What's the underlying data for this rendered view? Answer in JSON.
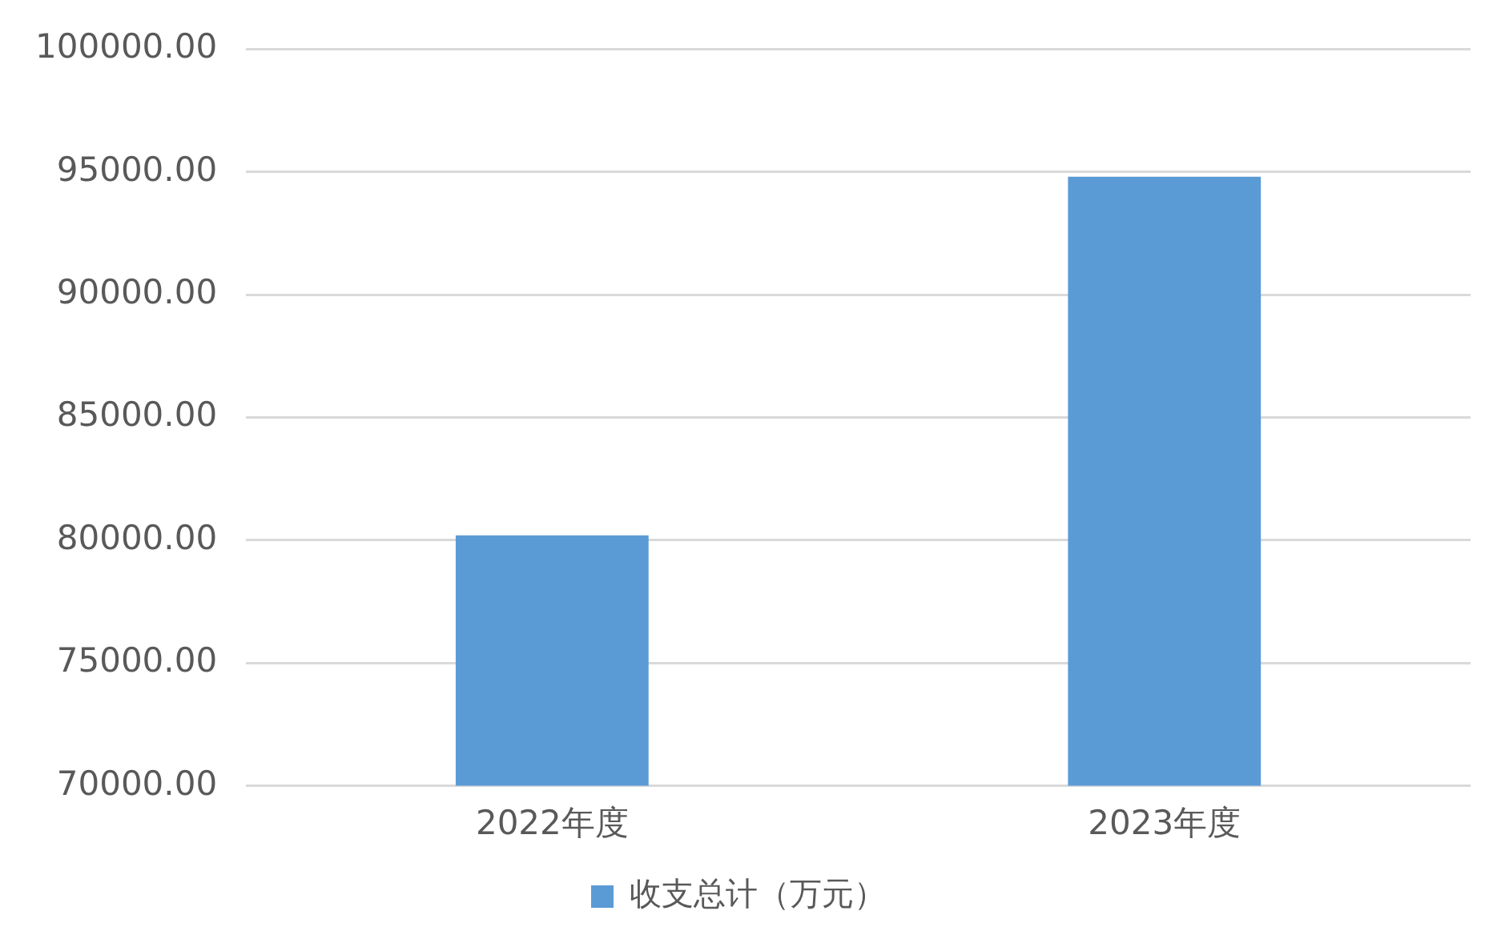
{
  "chart_data": {
    "type": "bar",
    "categories": [
      "2022年度",
      "2023年度"
    ],
    "series": [
      {
        "name": "收支总计（万元）",
        "color": "#5b9bd5",
        "values": [
          80200,
          94800
        ]
      }
    ],
    "ylim": [
      70000,
      100000
    ],
    "yticks": [
      {
        "value": 70000,
        "label": "70000.00"
      },
      {
        "value": 75000,
        "label": "75000.00"
      },
      {
        "value": 80000,
        "label": "80000.00"
      },
      {
        "value": 85000,
        "label": "85000.00"
      },
      {
        "value": 90000,
        "label": "90000.00"
      },
      {
        "value": 95000,
        "label": "95000.00"
      },
      {
        "value": 100000,
        "label": "100000.00"
      }
    ],
    "grid": "y",
    "legend": "bottom"
  }
}
